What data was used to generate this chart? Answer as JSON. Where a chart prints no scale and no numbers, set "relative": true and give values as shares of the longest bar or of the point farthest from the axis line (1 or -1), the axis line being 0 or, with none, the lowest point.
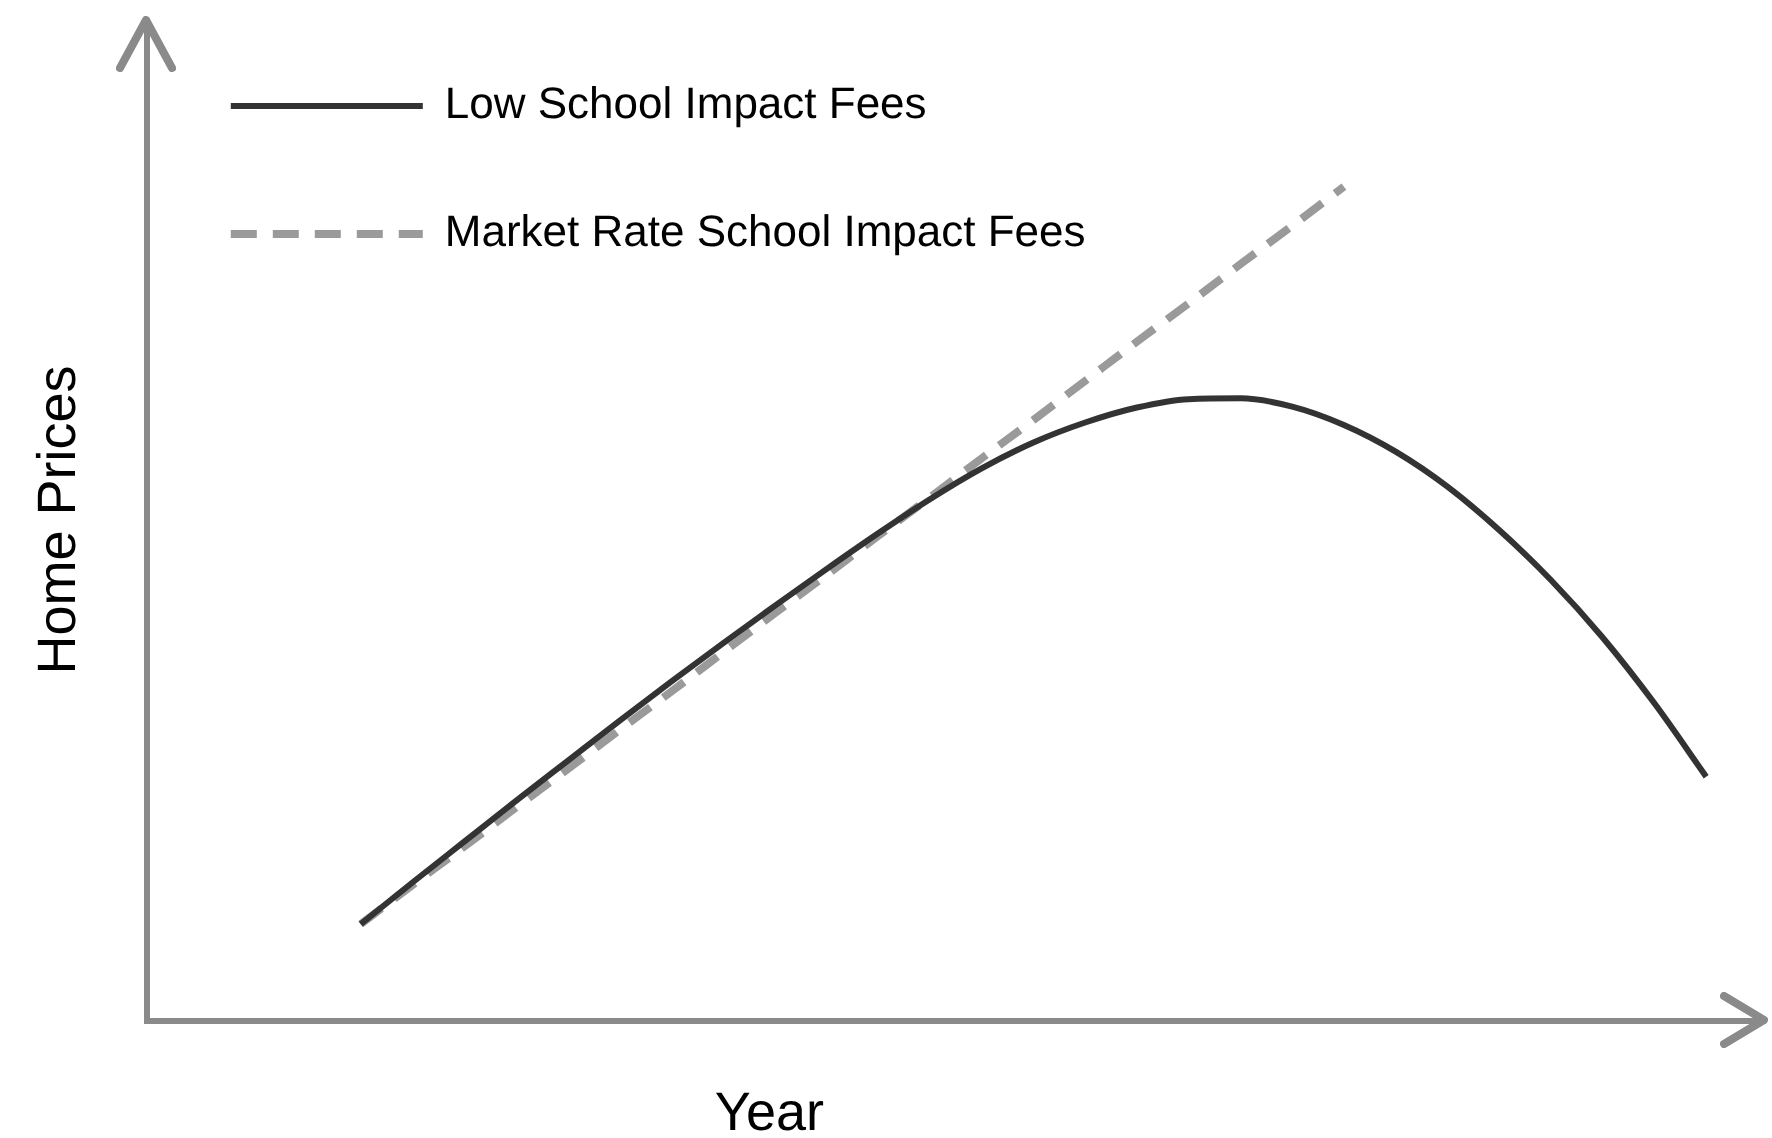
{
  "chart_data": {
    "type": "line",
    "xlabel": "Year",
    "ylabel": "Home Prices",
    "relative": true,
    "legend": "top left",
    "marker": "none",
    "categories": [
      null,
      null,
      null,
      null,
      null,
      null,
      null,
      null,
      null,
      null,
      null,
      null,
      null,
      null,
      null,
      null,
      null,
      null,
      null,
      null,
      null,
      null,
      null,
      null,
      null,
      null,
      null
    ],
    "series": [
      {
        "name": "Low School Impact Fees",
        "color": "#333333",
        "line_style": "solid",
        "values": [
          0.115,
          0.165,
          0.214,
          0.263,
          0.311,
          0.359,
          0.406,
          0.452,
          0.497,
          0.541,
          0.584,
          0.625,
          0.662,
          0.693,
          0.717,
          0.735,
          0.745,
          0.746,
          0.736,
          0.714,
          0.682,
          0.64,
          0.588,
          0.528,
          0.459,
          0.38,
          0.292
        ]
      },
      {
        "name": "Market Rate School Impact Fees",
        "color": "#9a9a9a",
        "line_style": "dashed",
        "values": [
          0.115,
          0.162,
          0.208,
          0.255,
          0.301,
          0.348,
          0.394,
          0.441,
          0.488,
          0.534,
          0.581,
          0.627,
          0.674,
          0.72,
          0.767,
          0.814,
          0.86,
          0.907,
          0.953,
          1,
          null,
          null,
          null,
          null,
          null,
          null,
          null
        ]
      }
    ]
  }
}
